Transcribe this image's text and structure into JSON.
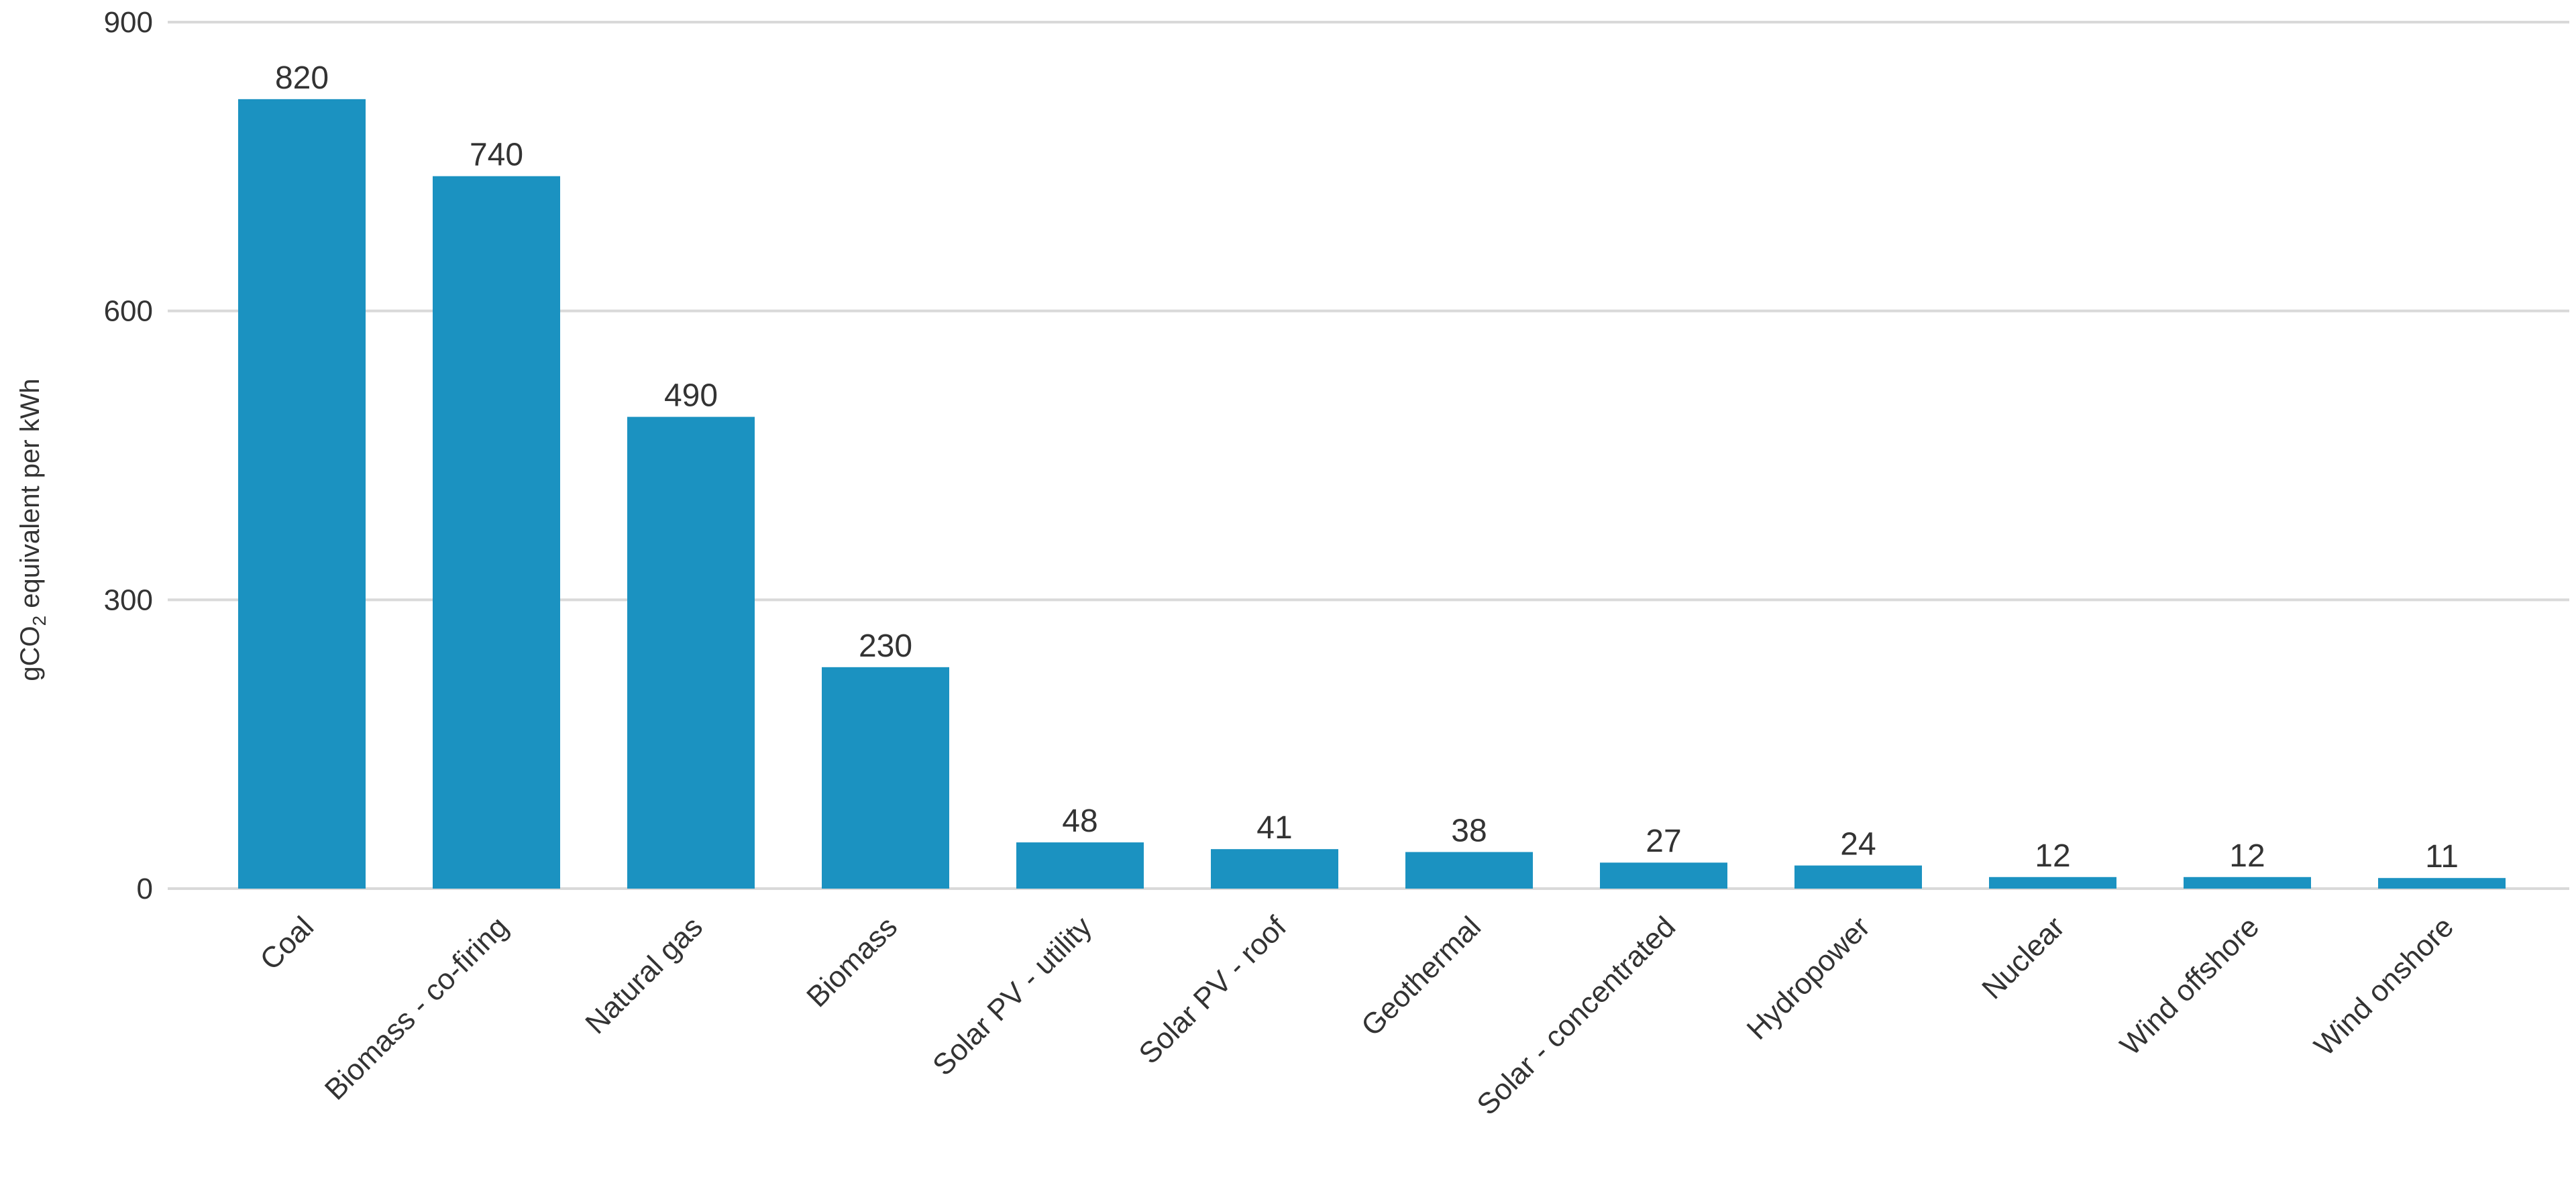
{
  "chart_data": {
    "type": "bar",
    "title": "",
    "xlabel": "",
    "ylabel": "gCO",
    "ylabel_subscript": "2",
    "ylabel_suffix": " equivalent per kWh",
    "ylim": [
      0,
      900
    ],
    "yticks": [
      0,
      300,
      600,
      900
    ],
    "grid": true,
    "bar_color": "#1b92c1",
    "categories": [
      "Coal",
      "Biomass - co-firing",
      "Natural gas",
      "Biomass",
      "Solar PV - utility",
      "Solar PV - roof",
      "Geothermal",
      "Solar - concentrated",
      "Hydropower",
      "Nuclear",
      "Wind offshore",
      "Wind onshore"
    ],
    "values": [
      820,
      740,
      490,
      230,
      48,
      41,
      38,
      27,
      24,
      12,
      12,
      11
    ]
  }
}
